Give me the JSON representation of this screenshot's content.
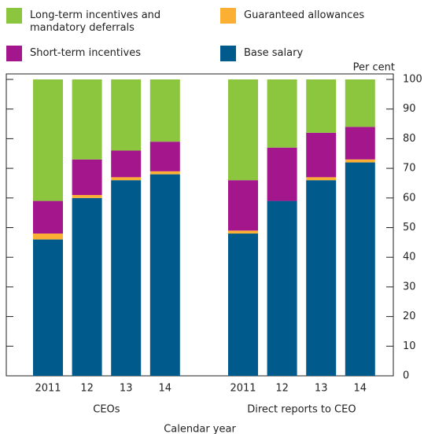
{
  "chart_data": {
    "type": "stacked_bar",
    "x_label": "Calendar year",
    "y_label": "Per cent",
    "groups": [
      {
        "name": "CEOs",
        "categories": [
          "2011",
          "12",
          "13",
          "14"
        ]
      },
      {
        "name": "Direct reports to CEO",
        "categories": [
          "2011",
          "12",
          "13",
          "14"
        ]
      }
    ],
    "series": [
      {
        "name": "Base salary",
        "color": "#005a8c",
        "values": [
          46,
          60,
          66,
          68,
          48,
          59,
          66,
          72
        ]
      },
      {
        "name": "Guaranteed allowances",
        "color": "#fbb034",
        "values": [
          2,
          1,
          1,
          1,
          1,
          0,
          1,
          1
        ]
      },
      {
        "name": "Short-term incentives",
        "color": "#a4178c",
        "values": [
          11,
          12,
          9,
          10,
          17,
          18,
          15,
          11
        ]
      },
      {
        "name": "Long-term incentives and mandatory deferrals",
        "color": "#8cc63f",
        "values": [
          41,
          27,
          24,
          21,
          34,
          23,
          18,
          16
        ]
      }
    ],
    "ylim": [
      0,
      100
    ],
    "yticks": [
      0,
      10,
      20,
      30,
      40,
      50,
      60,
      70,
      80,
      90,
      100
    ]
  }
}
